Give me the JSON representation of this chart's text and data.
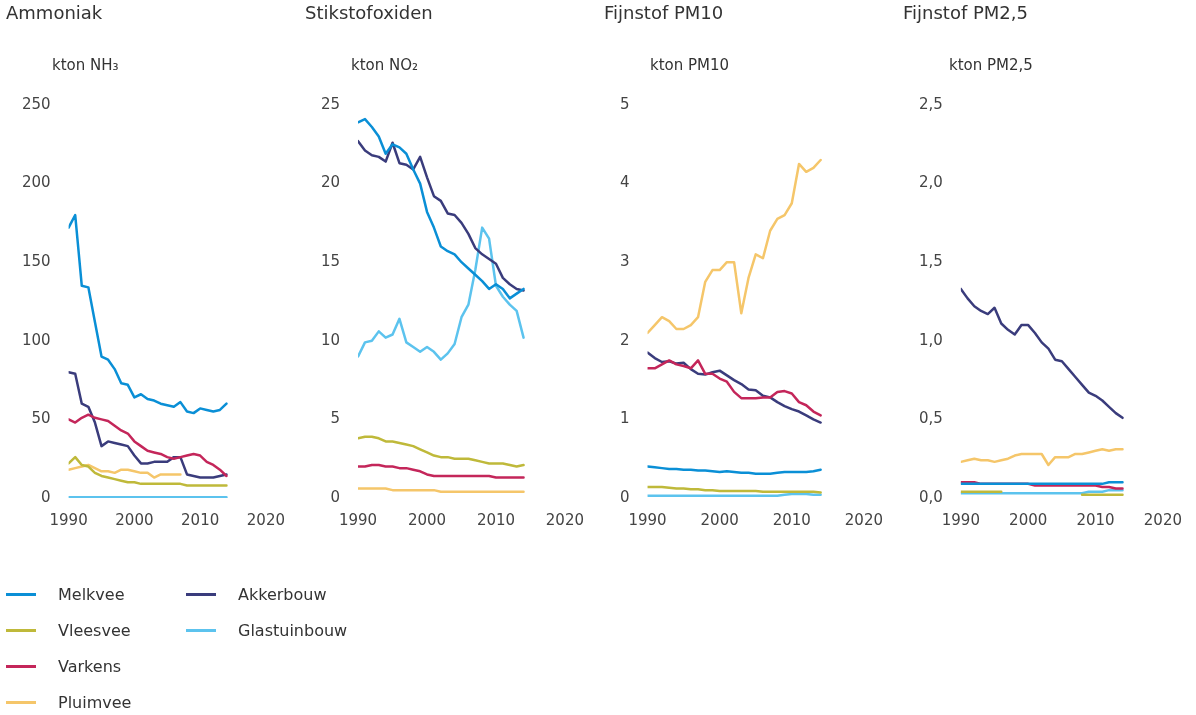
{
  "chart_data": [
    {
      "type": "line",
      "title": "Ammoniak",
      "ylabel": "kton NH₃",
      "x": [
        1990,
        1991,
        1992,
        1993,
        1994,
        1995,
        1996,
        1997,
        1998,
        1999,
        2000,
        2001,
        2002,
        2003,
        2004,
        2005,
        2006,
        2007,
        2008,
        2009,
        2010,
        2011,
        2012,
        2013,
        2014
      ],
      "xlim": [
        1990,
        2020
      ],
      "xticks": [
        1990,
        2000,
        2010,
        2020
      ],
      "ylim": [
        0,
        250
      ],
      "yticks": [
        0,
        50,
        100,
        150,
        200,
        250
      ],
      "legend": "bottom",
      "series": [
        {
          "name": "Melkvee",
          "color": "#0a8fd6",
          "values": [
            172,
            180,
            135,
            134,
            112,
            90,
            88,
            82,
            73,
            72,
            64,
            66,
            63,
            62,
            60,
            59,
            58,
            61,
            55,
            54,
            57,
            56,
            55,
            56,
            60
          ]
        },
        {
          "name": "Vleesvee",
          "color": "#bfb93a",
          "values": [
            22,
            26,
            21,
            20,
            16,
            14,
            13,
            12,
            11,
            10,
            10,
            9,
            9,
            9,
            9,
            9,
            9,
            9,
            8,
            8,
            8,
            8,
            8,
            8,
            8
          ]
        },
        {
          "name": "Varkens",
          "color": "#c4265a",
          "values": [
            50,
            48,
            51,
            53,
            51,
            50,
            49,
            46,
            43,
            41,
            36,
            33,
            30,
            29,
            28,
            26,
            25,
            26,
            27,
            28,
            27,
            23,
            21,
            18,
            14
          ]
        },
        {
          "name": "Pluimvee",
          "color": "#f5c66a",
          "values": [
            18,
            19,
            20,
            21,
            19,
            17,
            17,
            16,
            18,
            18,
            17,
            16,
            16,
            13,
            15,
            15,
            15,
            15,
            null,
            null,
            null,
            null,
            null,
            null,
            null
          ]
        },
        {
          "name": "Akkerbouw",
          "color": "#3a3c7c",
          "values": [
            80,
            79,
            60,
            58,
            48,
            33,
            36,
            35,
            34,
            33,
            27,
            22,
            22,
            23,
            23,
            23,
            26,
            26,
            15,
            14,
            13,
            13,
            13,
            14,
            15
          ]
        },
        {
          "name": "Glastuinbouw",
          "color": "#5cc3ee",
          "values": [
            0.5,
            0.5,
            0.5,
            0.5,
            0.5,
            0.5,
            0.5,
            0.5,
            0.5,
            0.5,
            0.5,
            0.5,
            0.5,
            0.5,
            0.5,
            0.5,
            0.5,
            0.5,
            0.5,
            0.5,
            0.5,
            0.5,
            0.5,
            0.5,
            0.5
          ]
        }
      ]
    },
    {
      "type": "line",
      "title": "Stikstofoxiden",
      "ylabel": "kton NO₂",
      "x": [
        1990,
        1991,
        1992,
        1993,
        1994,
        1995,
        1996,
        1997,
        1998,
        1999,
        2000,
        2001,
        2002,
        2003,
        2004,
        2005,
        2006,
        2007,
        2008,
        2009,
        2010,
        2011,
        2012,
        2013,
        2014
      ],
      "xlim": [
        1990,
        2020
      ],
      "xticks": [
        1990,
        2000,
        2010,
        2020
      ],
      "ylim": [
        0,
        25
      ],
      "yticks": [
        0,
        5,
        10,
        15,
        20,
        25
      ],
      "series": [
        {
          "color": "#0a8fd6",
          "values": [
            23.9,
            24.1,
            23.6,
            23.0,
            21.9,
            22.5,
            22.3,
            21.9,
            20.9,
            20.0,
            18.2,
            17.2,
            16.0,
            15.7,
            15.5,
            15.0,
            14.6,
            14.2,
            13.8,
            13.3,
            13.6,
            13.3,
            12.7,
            13.0,
            13.3
          ]
        },
        {
          "color": "#bfb93a",
          "values": [
            3.8,
            3.9,
            3.9,
            3.8,
            3.6,
            3.6,
            3.5,
            3.4,
            3.3,
            3.1,
            2.9,
            2.7,
            2.6,
            2.6,
            2.5,
            2.5,
            2.5,
            2.4,
            2.3,
            2.2,
            2.2,
            2.2,
            2.1,
            2.0,
            2.1
          ]
        },
        {
          "color": "#c4265a",
          "values": [
            2.0,
            2.0,
            2.1,
            2.1,
            2.0,
            2.0,
            1.9,
            1.9,
            1.8,
            1.7,
            1.5,
            1.4,
            1.4,
            1.4,
            1.4,
            1.4,
            1.4,
            1.4,
            1.4,
            1.4,
            1.3,
            1.3,
            1.3,
            1.3,
            1.3
          ]
        },
        {
          "color": "#f5c66a",
          "values": [
            0.6,
            0.6,
            0.6,
            0.6,
            0.6,
            0.5,
            0.5,
            0.5,
            0.5,
            0.5,
            0.5,
            0.5,
            0.4,
            0.4,
            0.4,
            0.4,
            0.4,
            0.4,
            0.4,
            0.4,
            0.4,
            0.4,
            0.4,
            0.4,
            0.4
          ]
        },
        {
          "color": "#3a3c7c",
          "values": [
            22.7,
            22.1,
            21.8,
            21.7,
            21.4,
            22.6,
            21.3,
            21.2,
            20.9,
            21.7,
            20.4,
            19.2,
            18.9,
            18.1,
            18.0,
            17.5,
            16.8,
            15.9,
            15.5,
            15.2,
            14.9,
            14.0,
            13.6,
            13.3,
            13.2
          ]
        },
        {
          "color": "#5cc3ee",
          "values": [
            9.0,
            9.9,
            10.0,
            10.6,
            10.2,
            10.4,
            11.4,
            9.9,
            9.6,
            9.3,
            9.6,
            9.3,
            8.8,
            9.2,
            9.8,
            11.5,
            12.3,
            14.5,
            17.2,
            16.5,
            13.5,
            12.8,
            12.3,
            11.9,
            10.2
          ]
        }
      ]
    },
    {
      "type": "line",
      "title": "Fijnstof PM10",
      "ylabel": "kton PM10",
      "x": [
        1990,
        1991,
        1992,
        1993,
        1994,
        1995,
        1996,
        1997,
        1998,
        1999,
        2000,
        2001,
        2002,
        2003,
        2004,
        2005,
        2006,
        2007,
        2008,
        2009,
        2010,
        2011,
        2012,
        2013,
        2014
      ],
      "xlim": [
        1990,
        2020
      ],
      "xticks": [
        1990,
        2000,
        2010,
        2020
      ],
      "ylim": [
        0,
        5
      ],
      "yticks": [
        0,
        1,
        2,
        3,
        4,
        5
      ],
      "series": [
        {
          "color": "#0a8fd6",
          "values": [
            0.4,
            0.39,
            0.38,
            0.37,
            0.37,
            0.36,
            0.36,
            0.35,
            0.35,
            0.34,
            0.33,
            0.34,
            0.33,
            0.32,
            0.32,
            0.31,
            0.31,
            0.31,
            0.32,
            0.33,
            0.33,
            0.33,
            0.33,
            0.34,
            0.36
          ]
        },
        {
          "color": "#bfb93a",
          "values": [
            0.14,
            0.14,
            0.14,
            0.13,
            0.12,
            0.12,
            0.11,
            0.11,
            0.1,
            0.1,
            0.09,
            0.09,
            0.09,
            0.09,
            0.09,
            0.09,
            0.08,
            0.08,
            0.08,
            0.08,
            0.08,
            0.08,
            0.08,
            0.08,
            0.07
          ]
        },
        {
          "color": "#c4265a",
          "values": [
            1.65,
            1.65,
            1.7,
            1.75,
            1.7,
            1.68,
            1.65,
            1.75,
            1.58,
            1.58,
            1.52,
            1.48,
            1.35,
            1.27,
            1.27,
            1.27,
            1.28,
            1.28,
            1.35,
            1.36,
            1.33,
            1.22,
            1.18,
            1.1,
            1.05
          ]
        },
        {
          "color": "#f5c66a",
          "values": [
            2.1,
            2.2,
            2.3,
            2.25,
            2.15,
            2.15,
            2.2,
            2.3,
            2.75,
            2.9,
            2.9,
            3.0,
            3.0,
            2.35,
            2.8,
            3.1,
            3.05,
            3.4,
            3.55,
            3.6,
            3.75,
            4.25,
            4.15,
            4.2,
            4.3
          ]
        },
        {
          "color": "#3a3c7c",
          "values": [
            1.85,
            1.78,
            1.73,
            1.74,
            1.71,
            1.72,
            1.64,
            1.58,
            1.57,
            1.6,
            1.62,
            1.56,
            1.5,
            1.45,
            1.38,
            1.37,
            1.3,
            1.28,
            1.22,
            1.17,
            1.13,
            1.1,
            1.05,
            1.0,
            0.96
          ]
        },
        {
          "color": "#5cc3ee",
          "values": [
            0.03,
            0.03,
            0.03,
            0.03,
            0.03,
            0.03,
            0.03,
            0.03,
            0.03,
            0.03,
            0.03,
            0.03,
            0.03,
            0.03,
            0.03,
            0.03,
            0.03,
            0.03,
            0.03,
            0.04,
            0.05,
            0.05,
            0.05,
            0.04,
            0.04
          ]
        }
      ]
    },
    {
      "type": "line",
      "title": "Fijnstof PM2,5",
      "ylabel": "kton PM2,5",
      "x": [
        1990,
        1991,
        1992,
        1993,
        1994,
        1995,
        1996,
        1997,
        1998,
        1999,
        2000,
        2001,
        2002,
        2003,
        2004,
        2005,
        2006,
        2007,
        2008,
        2009,
        2010,
        2011,
        2012,
        2013,
        2014
      ],
      "xlim": [
        1990,
        2020
      ],
      "xticks": [
        1990,
        2000,
        2010,
        2020
      ],
      "ylim": [
        0,
        2.5
      ],
      "yticks": [
        {
          "value": 0,
          "label": "0,0"
        },
        {
          "value": 0.5,
          "label": "0,5"
        },
        {
          "value": 1,
          "label": "1,0"
        },
        {
          "value": 1.5,
          "label": "1,5"
        },
        {
          "value": 2,
          "label": "2,0"
        },
        {
          "value": 2.5,
          "label": "2,5"
        }
      ],
      "series": [
        {
          "color": "#0a8fd6",
          "values": [
            0.09,
            0.09,
            0.09,
            0.09,
            0.09,
            0.09,
            0.09,
            0.09,
            0.09,
            0.09,
            0.09,
            0.09,
            0.09,
            0.09,
            0.09,
            0.09,
            0.09,
            0.09,
            0.09,
            0.09,
            0.09,
            0.09,
            0.1,
            0.1,
            0.1
          ]
        },
        {
          "color": "#bfb93a",
          "values": [
            0.04,
            0.04,
            0.04,
            0.04,
            0.04,
            0.04,
            0.04,
            null,
            null,
            null,
            null,
            null,
            null,
            null,
            null,
            null,
            null,
            null,
            0.02,
            0.02,
            0.02,
            0.02,
            0.02,
            0.02,
            0.02
          ]
        },
        {
          "color": "#c4265a",
          "values": [
            0.1,
            0.1,
            0.1,
            0.09,
            0.09,
            0.09,
            0.09,
            0.09,
            0.09,
            0.09,
            0.09,
            0.08,
            0.08,
            0.08,
            0.08,
            0.08,
            0.08,
            0.08,
            0.08,
            0.08,
            0.08,
            0.07,
            0.07,
            0.06,
            0.06
          ]
        },
        {
          "color": "#f5c66a",
          "values": [
            0.23,
            0.24,
            0.25,
            0.24,
            0.24,
            0.23,
            0.24,
            0.25,
            0.27,
            0.28,
            0.28,
            0.28,
            0.28,
            0.21,
            0.26,
            0.26,
            0.26,
            0.28,
            0.28,
            0.29,
            0.3,
            0.31,
            0.3,
            0.31,
            0.31
          ]
        },
        {
          "color": "#3a3c7c",
          "values": [
            1.33,
            1.27,
            1.22,
            1.19,
            1.17,
            1.21,
            1.11,
            1.07,
            1.04,
            1.1,
            1.1,
            1.05,
            0.99,
            0.95,
            0.88,
            0.87,
            0.82,
            0.77,
            0.72,
            0.67,
            0.65,
            0.62,
            0.58,
            0.54,
            0.51
          ]
        },
        {
          "color": "#5cc3ee",
          "values": [
            0.03,
            0.03,
            0.03,
            0.03,
            0.03,
            0.03,
            0.03,
            0.03,
            0.03,
            0.03,
            0.03,
            0.03,
            0.03,
            0.03,
            0.03,
            0.03,
            0.03,
            0.03,
            0.03,
            0.04,
            0.04,
            0.04,
            0.05,
            0.05,
            0.05
          ]
        }
      ]
    }
  ]
}
